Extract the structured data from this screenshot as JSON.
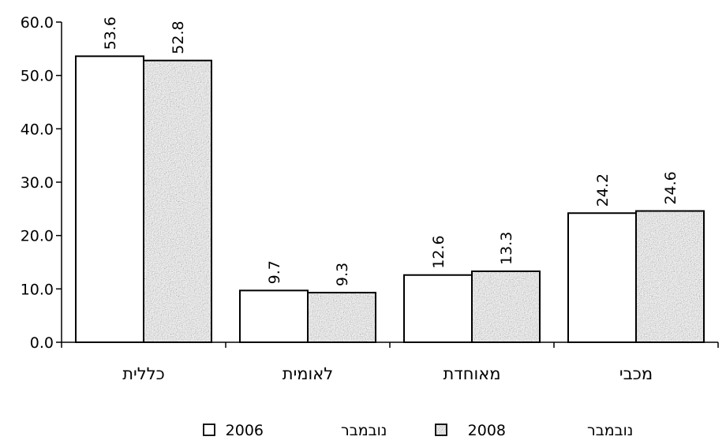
{
  "chart_data": {
    "type": "bar",
    "categories": [
      "כללית",
      "לאומית",
      "מאוחדת",
      "מכבי"
    ],
    "series": [
      {
        "name": "נובמבר 2006",
        "legend_word": "נובמבר",
        "legend_year": "2006",
        "values": [
          53.6,
          9.7,
          12.6,
          24.2
        ],
        "value_labels": [
          "53.6",
          "9.7",
          "12.6",
          "24.2"
        ],
        "fill": "#ffffff",
        "pattern": "none"
      },
      {
        "name": "נובמבר 2008",
        "legend_word": "נובמבר",
        "legend_year": "2008",
        "values": [
          52.8,
          9.3,
          13.3,
          24.6
        ],
        "value_labels": [
          "52.8",
          "9.3",
          "13.3",
          "24.6"
        ],
        "fill": "#a8a8a8",
        "pattern": "granite"
      }
    ],
    "ylim": [
      0,
      60
    ],
    "y_ticks": [
      0,
      10,
      20,
      30,
      40,
      50,
      60
    ],
    "y_tick_labels": [
      "0.0",
      "10.0",
      "20.0",
      "30.0",
      "40.0",
      "50.0",
      "60.0"
    ],
    "title": "",
    "xlabel": "",
    "ylabel": "",
    "grid": false,
    "legend_position": "bottom-center",
    "data_label_orientation": "vertical"
  }
}
